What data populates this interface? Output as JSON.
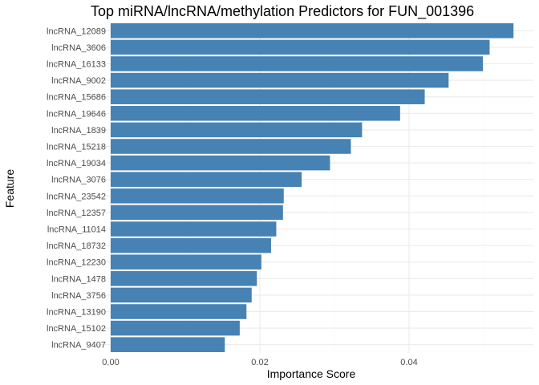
{
  "chart_data": {
    "type": "bar",
    "orientation": "horizontal",
    "title": "Top miRNA/lncRNA/methylation Predictors for FUN_001396",
    "xlabel": "Importance Score",
    "ylabel": "Feature",
    "xlim": [
      0,
      0.055
    ],
    "x_ticks": [
      "0.00",
      "0.02",
      "0.04"
    ],
    "grid": true,
    "bar_color": "#4682B4",
    "categories": [
      "lncRNA_12089",
      "lncRNA_3606",
      "lncRNA_16133",
      "lncRNA_9002",
      "lncRNA_15686",
      "lncRNA_19646",
      "lncRNA_1839",
      "lncRNA_15218",
      "lncRNA_19034",
      "lncRNA_3076",
      "lncRNA_23542",
      "lncRNA_12357",
      "lncRNA_11014",
      "lncRNA_18732",
      "lncRNA_12230",
      "lncRNA_1478",
      "lncRNA_3756",
      "lncRNA_13190",
      "lncRNA_15102",
      "lncRNA_9407"
    ],
    "values": [
      0.054,
      0.0508,
      0.0499,
      0.0453,
      0.0421,
      0.0388,
      0.0337,
      0.0322,
      0.0294,
      0.0256,
      0.0232,
      0.0231,
      0.0222,
      0.0215,
      0.0202,
      0.0196,
      0.0189,
      0.0182,
      0.0173,
      0.0153
    ]
  }
}
